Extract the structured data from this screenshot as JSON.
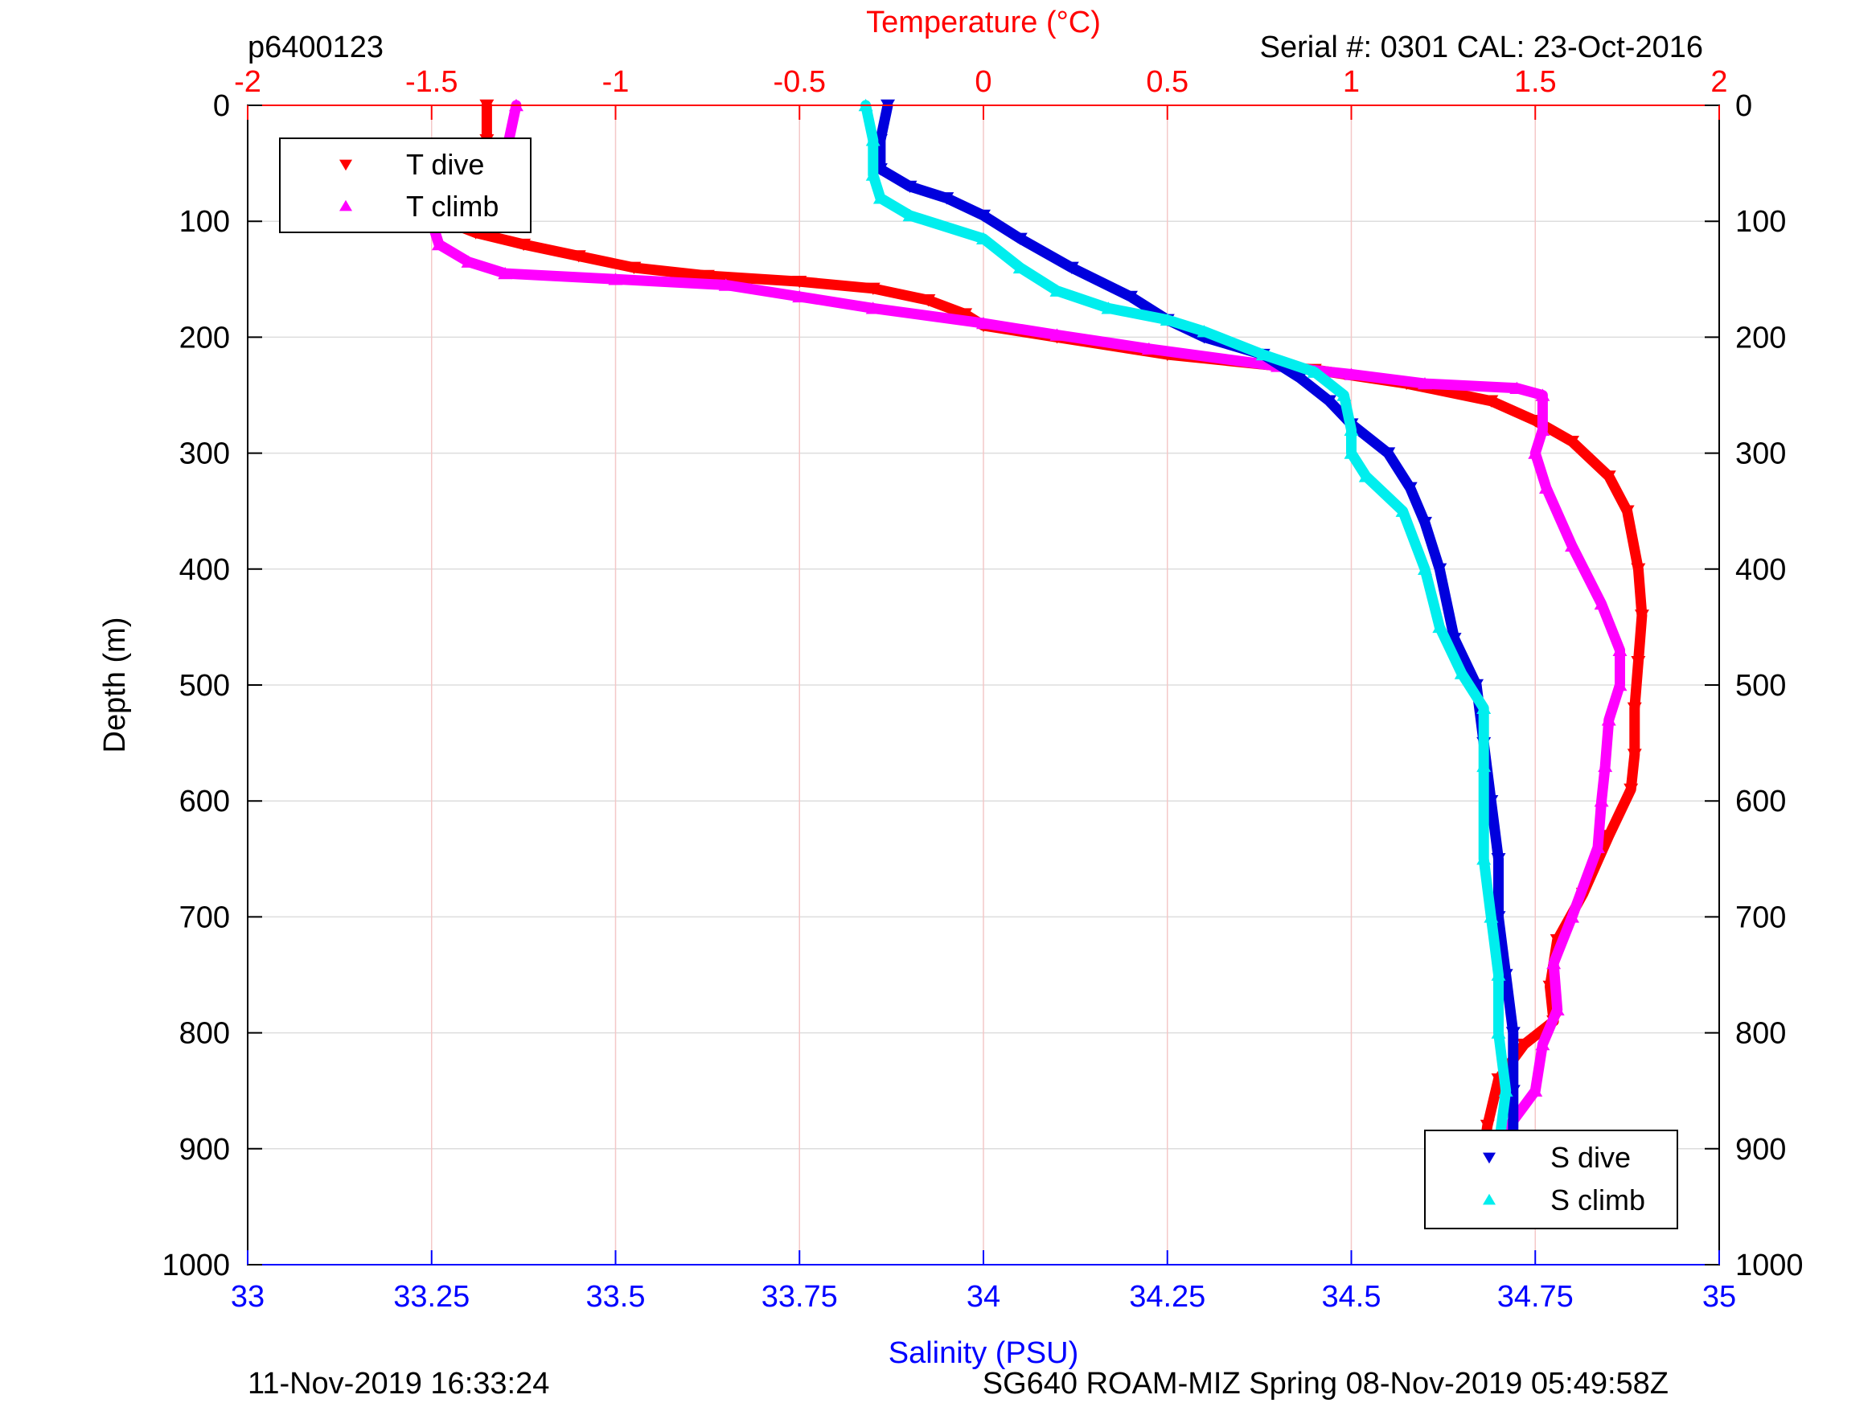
{
  "header": {
    "profile_id": "p6400123",
    "serial": "Serial #: 0301  CAL: 23-Oct-2016"
  },
  "footer": {
    "timestamp": "11-Nov-2019 16:33:24",
    "mission": "SG640 ROAM-MIZ Spring 08-Nov-2019 05:49:58Z"
  },
  "colors": {
    "t_dive": "#ff0000",
    "t_climb": "#ff00ff",
    "s_dive": "#0000dd",
    "s_climb": "#00eeee",
    "temp_axis": "#ff0000",
    "sal_axis": "#0000ff",
    "grid_temp": "#f4c8c8",
    "grid_depth": "#dddddd"
  },
  "chart_data": {
    "type": "scatter",
    "axes": {
      "depth": {
        "label": "Depth (m)",
        "range": [
          0,
          1000
        ],
        "ticks": [
          "0",
          "100",
          "200",
          "300",
          "400",
          "500",
          "600",
          "700",
          "800",
          "900",
          "1000"
        ],
        "reversed": true
      },
      "temperature": {
        "label": "Temperature (°C)",
        "range": [
          -2,
          2
        ],
        "ticks": [
          "-2",
          "-1.5",
          "-1",
          "-0.5",
          "0",
          "0.5",
          "1",
          "1.5",
          "2"
        ],
        "position": "top"
      },
      "salinity": {
        "label": "Salinity (PSU)",
        "range": [
          33,
          35
        ],
        "ticks": [
          "33",
          "33.25",
          "33.5",
          "33.75",
          "34",
          "34.25",
          "34.5",
          "34.75",
          "35"
        ],
        "position": "bottom"
      }
    },
    "grid": true,
    "legends": [
      {
        "position": "top-left",
        "entries": [
          "T dive",
          "T climb"
        ]
      },
      {
        "position": "bottom-right",
        "entries": [
          "S dive",
          "S climb"
        ]
      }
    ],
    "series": [
      {
        "name": "T dive",
        "axis": "temperature",
        "marker": "triangle-down",
        "points": [
          [
            -1.35,
            0
          ],
          [
            -1.35,
            30
          ],
          [
            -1.36,
            55
          ],
          [
            -1.44,
            70
          ],
          [
            -1.5,
            90
          ],
          [
            -1.46,
            100
          ],
          [
            -1.38,
            110
          ],
          [
            -1.25,
            120
          ],
          [
            -1.1,
            130
          ],
          [
            -0.95,
            140
          ],
          [
            -0.75,
            147
          ],
          [
            -0.5,
            152
          ],
          [
            -0.3,
            158
          ],
          [
            -0.15,
            168
          ],
          [
            -0.05,
            180
          ],
          [
            0.0,
            190
          ],
          [
            0.2,
            200
          ],
          [
            0.5,
            215
          ],
          [
            0.9,
            228
          ],
          [
            1.15,
            240
          ],
          [
            1.38,
            255
          ],
          [
            1.5,
            272
          ],
          [
            1.6,
            290
          ],
          [
            1.7,
            320
          ],
          [
            1.75,
            350
          ],
          [
            1.78,
            400
          ],
          [
            1.79,
            440
          ],
          [
            1.78,
            480
          ],
          [
            1.77,
            520
          ],
          [
            1.77,
            560
          ],
          [
            1.76,
            590
          ],
          [
            1.7,
            630
          ],
          [
            1.63,
            680
          ],
          [
            1.56,
            720
          ],
          [
            1.54,
            760
          ],
          [
            1.55,
            790
          ],
          [
            1.47,
            810
          ],
          [
            1.4,
            840
          ],
          [
            1.37,
            880
          ],
          [
            1.35,
            920
          ],
          [
            1.35,
            935
          ]
        ]
      },
      {
        "name": "T climb",
        "axis": "temperature",
        "marker": "triangle-up",
        "points": [
          [
            -1.27,
            0
          ],
          [
            -1.29,
            30
          ],
          [
            -1.32,
            60
          ],
          [
            -1.33,
            75
          ],
          [
            -1.43,
            85
          ],
          [
            -1.5,
            100
          ],
          [
            -1.48,
            120
          ],
          [
            -1.4,
            135
          ],
          [
            -1.3,
            145
          ],
          [
            -1.0,
            150
          ],
          [
            -0.7,
            155
          ],
          [
            -0.5,
            165
          ],
          [
            -0.3,
            175
          ],
          [
            0.0,
            188
          ],
          [
            0.2,
            198
          ],
          [
            0.45,
            210
          ],
          [
            0.8,
            225
          ],
          [
            1.0,
            232
          ],
          [
            1.2,
            240
          ],
          [
            1.45,
            244
          ],
          [
            1.52,
            250
          ],
          [
            1.52,
            280
          ],
          [
            1.5,
            300
          ],
          [
            1.53,
            330
          ],
          [
            1.6,
            380
          ],
          [
            1.68,
            430
          ],
          [
            1.73,
            470
          ],
          [
            1.73,
            500
          ],
          [
            1.7,
            530
          ],
          [
            1.69,
            570
          ],
          [
            1.68,
            600
          ],
          [
            1.67,
            640
          ],
          [
            1.6,
            700
          ],
          [
            1.55,
            740
          ],
          [
            1.56,
            780
          ],
          [
            1.52,
            810
          ],
          [
            1.5,
            850
          ],
          [
            1.43,
            880
          ],
          [
            1.4,
            900
          ],
          [
            1.37,
            920
          ],
          [
            1.34,
            935
          ]
        ]
      },
      {
        "name": "S dive",
        "axis": "salinity",
        "marker": "triangle-down",
        "points": [
          [
            33.87,
            0
          ],
          [
            33.86,
            30
          ],
          [
            33.86,
            55
          ],
          [
            33.9,
            70
          ],
          [
            33.95,
            80
          ],
          [
            34.0,
            95
          ],
          [
            34.05,
            115
          ],
          [
            34.12,
            140
          ],
          [
            34.2,
            165
          ],
          [
            34.25,
            185
          ],
          [
            34.3,
            200
          ],
          [
            34.38,
            215
          ],
          [
            34.43,
            235
          ],
          [
            34.47,
            255
          ],
          [
            34.5,
            275
          ],
          [
            34.55,
            300
          ],
          [
            34.58,
            330
          ],
          [
            34.6,
            360
          ],
          [
            34.62,
            400
          ],
          [
            34.64,
            460
          ],
          [
            34.67,
            500
          ],
          [
            34.68,
            550
          ],
          [
            34.69,
            600
          ],
          [
            34.7,
            650
          ],
          [
            34.7,
            700
          ],
          [
            34.71,
            750
          ],
          [
            34.72,
            800
          ],
          [
            34.72,
            850
          ],
          [
            34.72,
            900
          ],
          [
            34.71,
            935
          ]
        ]
      },
      {
        "name": "S climb",
        "axis": "salinity",
        "marker": "triangle-up",
        "points": [
          [
            33.84,
            0
          ],
          [
            33.85,
            30
          ],
          [
            33.85,
            60
          ],
          [
            33.86,
            80
          ],
          [
            33.9,
            95
          ],
          [
            34.0,
            115
          ],
          [
            34.05,
            140
          ],
          [
            34.1,
            160
          ],
          [
            34.17,
            175
          ],
          [
            34.25,
            185
          ],
          [
            34.3,
            195
          ],
          [
            34.38,
            215
          ],
          [
            34.45,
            230
          ],
          [
            34.49,
            250
          ],
          [
            34.5,
            280
          ],
          [
            34.5,
            300
          ],
          [
            34.52,
            320
          ],
          [
            34.57,
            350
          ],
          [
            34.6,
            400
          ],
          [
            34.62,
            450
          ],
          [
            34.65,
            490
          ],
          [
            34.68,
            520
          ],
          [
            34.68,
            570
          ],
          [
            34.68,
            650
          ],
          [
            34.69,
            700
          ],
          [
            34.7,
            750
          ],
          [
            34.7,
            800
          ],
          [
            34.71,
            850
          ],
          [
            34.7,
            900
          ],
          [
            34.7,
            945
          ]
        ]
      }
    ]
  }
}
